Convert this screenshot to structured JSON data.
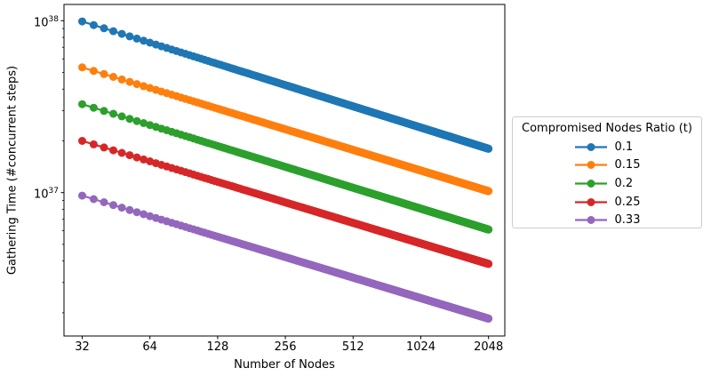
{
  "chart_data": {
    "type": "line",
    "title": "",
    "xlabel": "Number of Nodes",
    "ylabel": "Gathering Time (#concurrent steps)",
    "x_scale": "log2",
    "y_scale": "log10",
    "x_ticks": [
      32,
      64,
      128,
      256,
      512,
      1024,
      2048
    ],
    "x_tick_labels": [
      "32",
      "64",
      "128",
      "256",
      "512",
      "1024",
      "2048"
    ],
    "y_ticks": [
      {
        "mantissa": "10",
        "exponent": "38",
        "value": 1e+38
      },
      {
        "mantissa": "10",
        "exponent": "37",
        "value": 1e+37
      }
    ],
    "y_minor_tick_decades": [
      36,
      37
    ],
    "x_range": [
      26.5,
      2400
    ],
    "y_range": [
      1.45e+36,
      1.25e+38
    ],
    "grid": false,
    "marker": "circle",
    "x_points": {
      "start": 32,
      "end": 2048,
      "step": 4
    },
    "legend": {
      "title": "Compromised Nodes Ratio (t)",
      "position": "right-outside"
    },
    "series": [
      {
        "name": "0.1",
        "color": "#1f77b4",
        "y_at_x32": 9.9e+37,
        "y_at_x2048": 1.8e+37,
        "values_at_ticks": [
          9.9e+37,
          7.45e+37,
          5.61e+37,
          4.22e+37,
          3.18e+37,
          2.39e+37,
          1.8e+37
        ]
      },
      {
        "name": "0.15",
        "color": "#ff7f0e",
        "y_at_x32": 5.35e+37,
        "y_at_x2048": 1.02e+37,
        "values_at_ticks": [
          5.35e+37,
          4.06e+37,
          3.08e+37,
          2.34e+37,
          1.77e+37,
          1.345e+37,
          1.02e+37
        ]
      },
      {
        "name": "0.2",
        "color": "#2ca02c",
        "y_at_x32": 3.27e+37,
        "y_at_x2048": 6.1e+36,
        "values_at_ticks": [
          3.27e+37,
          2.47e+37,
          1.87e+37,
          1.412e+37,
          1.068e+37,
          8.07e+36,
          6.1e+36
        ]
      },
      {
        "name": "0.25",
        "color": "#d62728",
        "y_at_x32": 2e+37,
        "y_at_x2048": 3.85e+36,
        "values_at_ticks": [
          2e+37,
          1.52e+37,
          1.155e+37,
          8.78e+36,
          6.68e+36,
          5.07e+36,
          3.85e+36
        ]
      },
      {
        "name": "0.33",
        "color": "#9467bd",
        "y_at_x32": 9.6e+36,
        "y_at_x2048": 1.85e+36,
        "values_at_ticks": [
          9.6e+36,
          7.3e+36,
          5.55e+36,
          4.22e+36,
          3.21e+36,
          2.44e+36,
          1.85e+36
        ]
      }
    ]
  }
}
